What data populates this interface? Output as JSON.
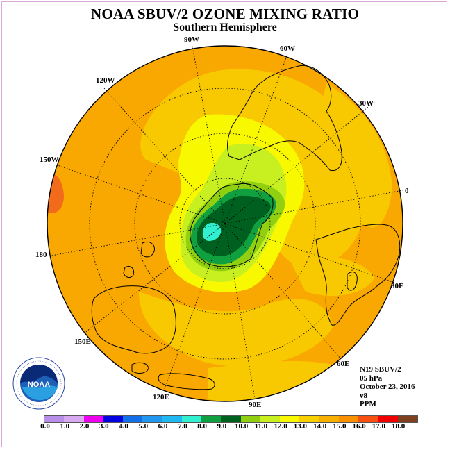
{
  "header": {
    "title": "NOAA SBUV/2 OZONE MIXING RATIO",
    "subtitle": "Southern Hemisphere"
  },
  "map": {
    "projection": "south polar stereographic",
    "longitude_labels": [
      "0",
      "30W",
      "60W",
      "90W",
      "120W",
      "150W",
      "180",
      "150E",
      "120E",
      "90E",
      "60E",
      "30E"
    ],
    "field_description_colors": {
      "background_level": "#f2a500",
      "high_edge": "#f26b1a"
    }
  },
  "info": {
    "satellite": "N19 SBUV/2",
    "level": "05 hPa",
    "date": "October 23, 2016",
    "version": "v8",
    "units": "PPM"
  },
  "logo": {
    "text": "NOAA",
    "ring_text": "NATIONAL OCEANIC AND ATMOSPHERIC ADMINISTRATION · U.S. DEPARTMENT OF COMMERCE"
  },
  "colorbar": {
    "colors": [
      "#b88ee8",
      "#d8a8f0",
      "#f000f0",
      "#0000e0",
      "#1470e8",
      "#2098f0",
      "#20b8f0",
      "#30f0d0",
      "#10a040",
      "#006020",
      "#90d010",
      "#c8f020",
      "#f8f800",
      "#f8d000",
      "#f8b000",
      "#f89000",
      "#f85010",
      "#f00000",
      "#804020"
    ],
    "ticks": [
      "0.0",
      "1.0",
      "2.0",
      "3.0",
      "4.0",
      "5.0",
      "6.0",
      "7.0",
      "8.0",
      "9.0",
      "10.0",
      "11.0",
      "12.0",
      "13.0",
      "14.0",
      "15.0",
      "16.0",
      "17.0",
      "18.0"
    ]
  }
}
